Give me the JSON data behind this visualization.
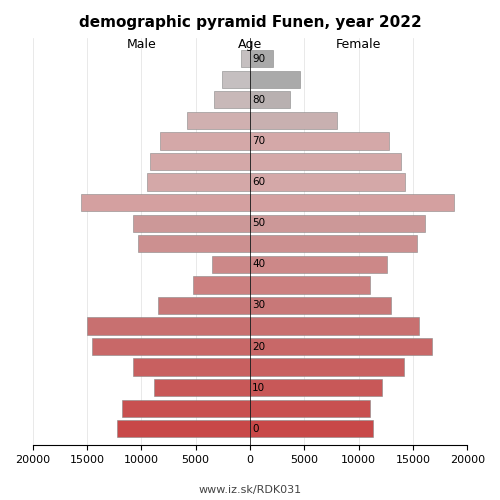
{
  "title": "demographic pyramid Funen, year 2022",
  "age_groups": [
    90,
    85,
    80,
    75,
    70,
    65,
    60,
    55,
    50,
    45,
    40,
    35,
    30,
    25,
    20,
    15,
    10,
    5,
    0
  ],
  "male": [
    800,
    2600,
    3300,
    5800,
    8300,
    9200,
    9500,
    15500,
    10800,
    10300,
    3500,
    5200,
    8500,
    15000,
    14500,
    10800,
    8800,
    11800,
    12200
  ],
  "female": [
    2100,
    4600,
    3700,
    8000,
    12800,
    13900,
    14300,
    18800,
    16100,
    15400,
    12600,
    11000,
    13000,
    15500,
    16700,
    14200,
    12100,
    11000,
    11300
  ],
  "male_colors": [
    "#c5bfc0",
    "#c5bfc0",
    "#c8b8b8",
    "#d0b0b0",
    "#d4a8a8",
    "#d4a8a8",
    "#d4a8a8",
    "#d4a0a0",
    "#cc9898",
    "#cc9090",
    "#cc8888",
    "#cc8080",
    "#c87878",
    "#c87070",
    "#c86868",
    "#c86060",
    "#c85858",
    "#c85050",
    "#c84848"
  ],
  "female_colors": [
    "#aaaaaa",
    "#aaaaaa",
    "#b8b0b0",
    "#c8b0b0",
    "#d4a8a8",
    "#d4a8a8",
    "#d4a8a8",
    "#d4a0a0",
    "#cc9898",
    "#cc9090",
    "#cc8888",
    "#cc8080",
    "#c87878",
    "#c87070",
    "#c86868",
    "#c86060",
    "#c85858",
    "#c85050",
    "#c84848"
  ],
  "xlabel_left": "Male",
  "xlabel_center": "Age",
  "xlabel_right": "Female",
  "xlim": 20000,
  "bar_height": 4.2,
  "url": "www.iz.sk/RDK031",
  "age_ticks": [
    0,
    10,
    20,
    30,
    40,
    50,
    60,
    70,
    80,
    90
  ],
  "xticks": [
    -20000,
    -15000,
    -10000,
    -5000,
    0,
    5000,
    10000,
    15000,
    20000
  ]
}
